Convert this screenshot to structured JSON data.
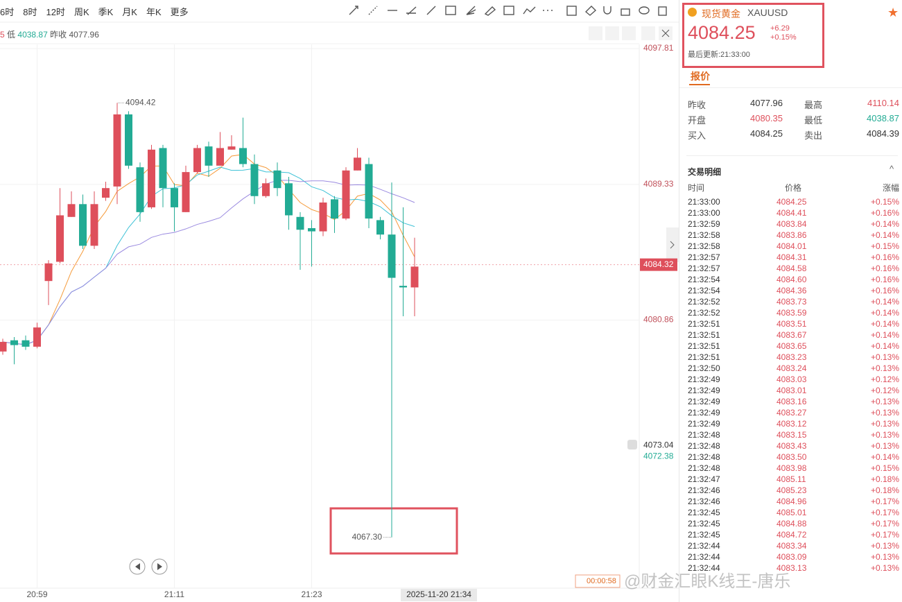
{
  "toolbar": {
    "periods": [
      "6时",
      "8时",
      "12时",
      "周K",
      "季K",
      "月K",
      "年K",
      "更多"
    ]
  },
  "info_bar": {
    "prefix": "5",
    "low_label": "低",
    "low": "4038.87",
    "prev_label": "昨收",
    "prev": "4077.96"
  },
  "chart_data": {
    "type": "candlestick",
    "categories": [
      null,
      null,
      null,
      "20:59",
      null,
      null,
      null,
      null,
      null,
      null,
      null,
      null,
      null,
      null,
      null,
      "21:11",
      null,
      null,
      null,
      null,
      null,
      null,
      null,
      null,
      null,
      null,
      null,
      "21:23",
      null,
      null,
      null,
      null,
      null,
      null,
      null,
      null,
      null
    ],
    "open": [
      4078.9,
      4079.6,
      4079.6,
      4079.2,
      4083.3,
      4084.5,
      4087.3,
      4088.1,
      4085.5,
      4088.5,
      4089.2,
      4093.7,
      4090.4,
      4087.9,
      4091.6,
      4089.1,
      4087.6,
      4090.1,
      4091.7,
      4090.5,
      4091.5,
      4091.6,
      4090.6,
      4088.6,
      4090.2,
      4089.4,
      4087.3,
      4086.6,
      4086.4,
      4088.4,
      4087.2,
      4090.2,
      4090.6,
      4087.1,
      4086.2,
      4083.0,
      4082.9
    ],
    "high": [
      4079.7,
      4079.8,
      4079.9,
      4080.7,
      4084.6,
      4089.1,
      4088.9,
      4088.7,
      4088.9,
      4089.5,
      4094.42,
      4093.9,
      4090.7,
      4091.8,
      4091.8,
      4089.4,
      4090.5,
      4091.8,
      4092.0,
      4092.6,
      4092.4,
      4093.5,
      4091.2,
      4089.7,
      4090.7,
      4089.8,
      4087.6,
      4087.1,
      4088.5,
      4088.6,
      4090.4,
      4091.6,
      4091.0,
      4087.3,
      4089.45,
      4087.9,
      4086.0
    ],
    "low": [
      4078.7,
      4078.1,
      4079.0,
      4079.1,
      4081.8,
      4084.4,
      4087.3,
      4085.3,
      4085.3,
      4088.3,
      4088.1,
      4090.3,
      4087.0,
      4087.8,
      4087.9,
      4086.4,
      4087.6,
      4090.0,
      4089.8,
      4090.5,
      4091.5,
      4090.4,
      4088.1,
      4088.5,
      4088.6,
      4086.5,
      4084.0,
      4084.2,
      4086.1,
      4086.3,
      4087.1,
      4090.2,
      4086.6,
      4085.9,
      4067.3,
      4081.1,
      4081.1
    ],
    "close": [
      4079.5,
      4079.3,
      4079.2,
      4080.4,
      4084.4,
      4087.4,
      4088.1,
      4085.5,
      4088.1,
      4089.1,
      4093.7,
      4090.5,
      4087.6,
      4091.5,
      4089.1,
      4087.9,
      4090.1,
      4091.6,
      4090.5,
      4091.6,
      4091.7,
      4090.6,
      4088.6,
      4089.4,
      4089.1,
      4087.4,
      4086.5,
      4086.4,
      4088.2,
      4087.2,
      4090.2,
      4091.0,
      4087.2,
      4086.2,
      4083.5,
      4082.9,
      4084.2
    ],
    "up_color": "#de4f5b",
    "down_color": "#22ab94",
    "ylim": [
      4064.13,
      4098.07
    ],
    "yticks": [
      4097.81,
      4089.33,
      4080.86
    ],
    "grid": true,
    "high_label": 4094.42,
    "low_label": {
      "value": 4067.3,
      "label": "4067.30"
    },
    "last_price": 4084.32,
    "alert_price": 4073.04,
    "other_price": 4072.38,
    "crosshair_time": "2025-11-20 21:34",
    "countdown": "00:00:58"
  },
  "quote": {
    "name": "现货黄金",
    "symbol": "XAUUSD",
    "price": "4084.25",
    "change": "+6.29",
    "change_pct": "+0.15%",
    "updated": "最后更新:21:33:00",
    "tab": "报价",
    "stats": [
      {
        "label": "昨收",
        "value": "4077.96",
        "color": "#333333"
      },
      {
        "label": "最高",
        "value": "4110.14",
        "color": "#de4f5b"
      },
      {
        "label": "开盘",
        "value": "4080.35",
        "color": "#de4f5b"
      },
      {
        "label": "最低",
        "value": "4038.87",
        "color": "#22ab94"
      },
      {
        "label": "买入",
        "value": "4084.25",
        "color": "#333333"
      },
      {
        "label": "卖出",
        "value": "4084.39",
        "color": "#333333"
      }
    ]
  },
  "trades": {
    "title": "交易明细",
    "headers": [
      "时间",
      "价格",
      "涨幅"
    ],
    "rows": [
      [
        "21:33:00",
        "4084.25",
        "+0.15%"
      ],
      [
        "21:33:00",
        "4084.41",
        "+0.16%"
      ],
      [
        "21:32:59",
        "4083.84",
        "+0.14%"
      ],
      [
        "21:32:58",
        "4083.86",
        "+0.14%"
      ],
      [
        "21:32:58",
        "4084.01",
        "+0.15%"
      ],
      [
        "21:32:57",
        "4084.31",
        "+0.16%"
      ],
      [
        "21:32:57",
        "4084.58",
        "+0.16%"
      ],
      [
        "21:32:54",
        "4084.60",
        "+0.16%"
      ],
      [
        "21:32:54",
        "4084.36",
        "+0.16%"
      ],
      [
        "21:32:52",
        "4083.73",
        "+0.14%"
      ],
      [
        "21:32:52",
        "4083.59",
        "+0.14%"
      ],
      [
        "21:32:51",
        "4083.51",
        "+0.14%"
      ],
      [
        "21:32:51",
        "4083.67",
        "+0.14%"
      ],
      [
        "21:32:51",
        "4083.65",
        "+0.14%"
      ],
      [
        "21:32:51",
        "4083.23",
        "+0.13%"
      ],
      [
        "21:32:50",
        "4083.24",
        "+0.13%"
      ],
      [
        "21:32:49",
        "4083.03",
        "+0.12%"
      ],
      [
        "21:32:49",
        "4083.01",
        "+0.12%"
      ],
      [
        "21:32:49",
        "4083.16",
        "+0.13%"
      ],
      [
        "21:32:49",
        "4083.27",
        "+0.13%"
      ],
      [
        "21:32:49",
        "4083.12",
        "+0.13%"
      ],
      [
        "21:32:48",
        "4083.15",
        "+0.13%"
      ],
      [
        "21:32:48",
        "4083.43",
        "+0.13%"
      ],
      [
        "21:32:48",
        "4083.50",
        "+0.14%"
      ],
      [
        "21:32:48",
        "4083.98",
        "+0.15%"
      ],
      [
        "21:32:47",
        "4085.11",
        "+0.18%"
      ],
      [
        "21:32:46",
        "4085.23",
        "+0.18%"
      ],
      [
        "21:32:46",
        "4084.96",
        "+0.17%"
      ],
      [
        "21:32:45",
        "4085.01",
        "+0.17%"
      ],
      [
        "21:32:45",
        "4084.88",
        "+0.17%"
      ],
      [
        "21:32:45",
        "4084.72",
        "+0.17%"
      ],
      [
        "21:32:44",
        "4083.34",
        "+0.13%"
      ],
      [
        "21:32:44",
        "4083.09",
        "+0.13%"
      ],
      [
        "21:32:44",
        "4083.13",
        "+0.13%"
      ]
    ]
  },
  "watermark": "@财金汇眼K线王-唐乐"
}
